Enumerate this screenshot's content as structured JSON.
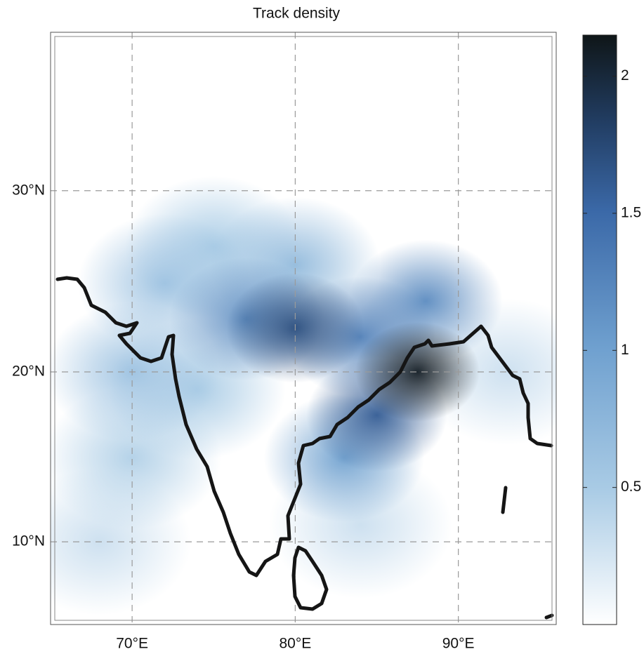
{
  "chart_data": {
    "type": "density-map",
    "title": "Track density",
    "xlim": [
      65,
      96
    ],
    "ylim": [
      5,
      38
    ],
    "xticks": [
      {
        "value": 70,
        "label": "70°E"
      },
      {
        "value": 80,
        "label": "80°E"
      },
      {
        "value": 90,
        "label": "90°E"
      }
    ],
    "yticks": [
      {
        "value": 10,
        "label": "10°N"
      },
      {
        "value": 20,
        "label": "20°N"
      },
      {
        "value": 30,
        "label": "30°N"
      }
    ],
    "grid": true,
    "clim": [
      0,
      2.15
    ],
    "cticks": [
      0.5,
      1,
      1.5,
      2
    ],
    "peaks": {
      "lon": [
        68,
        84,
        93,
        70,
        74,
        75,
        72,
        70,
        80,
        83,
        88,
        84,
        77,
        85,
        80,
        87.5
      ],
      "lat": [
        10,
        11,
        20,
        15,
        19,
        27,
        25,
        20,
        26,
        15,
        24,
        22,
        23,
        17.5,
        22.5,
        20
      ],
      "values": [
        0.3,
        0.3,
        0.3,
        0.45,
        0.5,
        0.5,
        0.6,
        0.6,
        0.7,
        1.0,
        1.2,
        1.3,
        1.2,
        1.6,
        1.7,
        2.1
      ]
    }
  }
}
